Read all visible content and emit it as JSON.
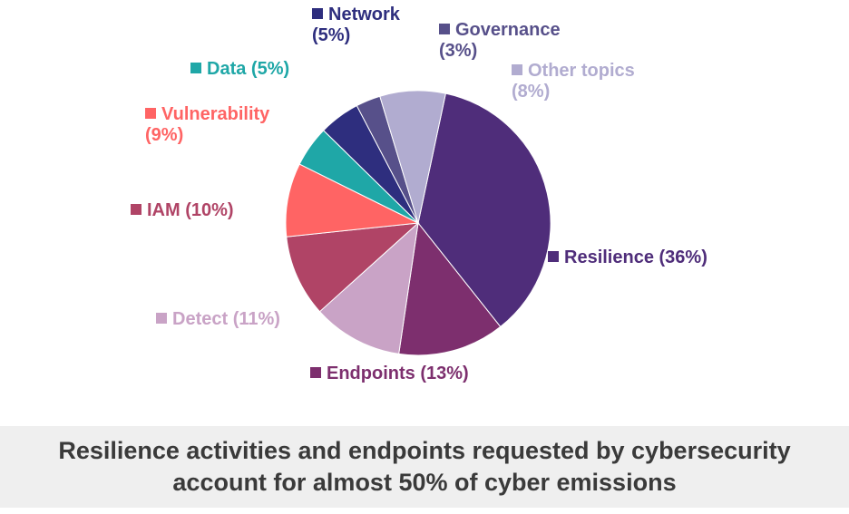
{
  "chart_data": {
    "type": "pie",
    "title": "",
    "start_angle_deg": 12,
    "direction": "clockwise",
    "slices": [
      {
        "label": "Resilience",
        "value": 36,
        "value_label": "(36%)",
        "color": "#4f2d7a",
        "label_lines": [
          "Resilience (36%)"
        ]
      },
      {
        "label": "Endpoints",
        "value": 13,
        "value_label": "(13%)",
        "color": "#7d2f6e",
        "label_lines": [
          "Endpoints (13%)"
        ]
      },
      {
        "label": "Detect",
        "value": 11,
        "value_label": "(11%)",
        "color": "#c9a3c6",
        "label_lines": [
          "Detect (11%)"
        ]
      },
      {
        "label": "IAM",
        "value": 10,
        "value_label": "(10%)",
        "color": "#b04466",
        "label_lines": [
          "IAM (10%)"
        ]
      },
      {
        "label": "Vulnerability",
        "value": 9,
        "value_label": "(9%)",
        "color": "#ff6464",
        "label_lines": [
          "Vulnerability",
          "(9%)"
        ]
      },
      {
        "label": "Data",
        "value": 5,
        "value_label": "(5%)",
        "color": "#1fa7a7",
        "label_lines": [
          "Data (5%)"
        ]
      },
      {
        "label": "Network",
        "value": 5,
        "value_label": "(5%)",
        "color": "#2e2e7e",
        "label_lines": [
          "Network",
          "(5%)"
        ]
      },
      {
        "label": "Governance",
        "value": 3,
        "value_label": "(3%)",
        "color": "#57508a",
        "label_lines": [
          "Governance",
          "(3%)"
        ]
      },
      {
        "label": "Other topics",
        "value": 8,
        "value_label": "(8%)",
        "color": "#b1acd0",
        "label_lines": [
          "Other topics",
          "(8%)"
        ]
      }
    ]
  },
  "caption": {
    "text": "Resilience activities and endpoints requested by cybersecurity\naccount for almost 50% of cyber emissions"
  }
}
